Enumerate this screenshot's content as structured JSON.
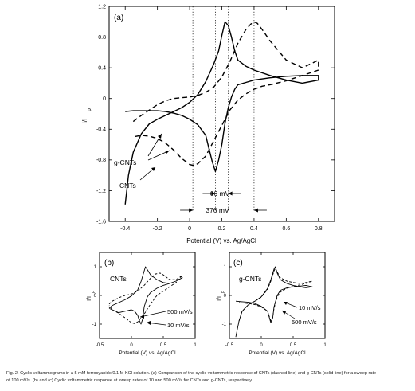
{
  "caption": {
    "line1": "Fig. 2. Cyclic voltammograms in a 5 mM ferrocyanide/0.1 M KCl solution. (a) Comparison of the cyclic voltammetric response of CNTs (dashed line) and g-CNTs (solid line) for a sweep rate",
    "line2": "of 100 mV/s. (b) and (c) Cyclic voltammetric response at sweep rates of 10 and 500 mV/s for CNTs and g-CNTs, respectively."
  },
  "chart_data": [
    {
      "panel_label": "(a)",
      "type": "line",
      "xlabel": "Potential (V) vs. Ag/AgCl",
      "ylabel": "I/I",
      "ylabel_sub": "p",
      "xlim": [
        -0.5,
        0.9
      ],
      "ylim": [
        -1.6,
        1.2
      ],
      "xticks": [
        -0.4,
        -0.2,
        0,
        0.2,
        0.4,
        0.6,
        0.8
      ],
      "xtick_labels": [
        "-0.4",
        "-0.2",
        "0",
        "0.2",
        "0.4",
        "0.6",
        "0.8"
      ],
      "yticks": [
        1.2,
        0.8,
        0.4,
        0,
        -0.4,
        -0.8,
        -1.2,
        -1.6
      ],
      "ytick_labels": [
        "1.2",
        "0.8",
        "0.4",
        "0",
        "-0.4",
        "-0.8",
        "-1.2",
        "-1.6"
      ],
      "series": [
        {
          "name": "g-CNTs",
          "style": "solid",
          "x": [
            -0.4,
            -0.38,
            -0.35,
            -0.3,
            -0.25,
            -0.2,
            -0.15,
            -0.1,
            -0.05,
            0.0,
            0.05,
            0.1,
            0.15,
            0.18,
            0.2,
            0.22,
            0.24,
            0.26,
            0.28,
            0.3,
            0.35,
            0.4,
            0.5,
            0.6,
            0.7,
            0.8,
            0.8,
            0.7,
            0.6,
            0.5,
            0.4,
            0.35,
            0.3,
            0.28,
            0.26,
            0.24,
            0.22,
            0.2,
            0.18,
            0.16,
            0.14,
            0.12,
            0.1,
            0.05,
            0.0,
            -0.05,
            -0.1,
            -0.15,
            -0.2,
            -0.25,
            -0.3,
            -0.35,
            -0.4
          ],
          "y": [
            -1.38,
            -1.0,
            -0.7,
            -0.46,
            -0.33,
            -0.27,
            -0.22,
            -0.17,
            -0.12,
            -0.05,
            0.05,
            0.22,
            0.45,
            0.62,
            0.82,
            1.0,
            0.95,
            0.8,
            0.62,
            0.5,
            0.42,
            0.37,
            0.3,
            0.24,
            0.2,
            0.24,
            0.3,
            0.3,
            0.29,
            0.27,
            0.24,
            0.21,
            0.18,
            0.12,
            0.02,
            -0.12,
            -0.32,
            -0.6,
            -0.8,
            -0.95,
            -0.82,
            -0.65,
            -0.48,
            -0.34,
            -0.27,
            -0.22,
            -0.19,
            -0.17,
            -0.16,
            -0.16,
            -0.16,
            -0.16,
            -0.17
          ]
        },
        {
          "name": "CNTs",
          "style": "dashed",
          "x": [
            -0.35,
            -0.3,
            -0.25,
            -0.2,
            -0.15,
            -0.1,
            -0.05,
            0.0,
            0.05,
            0.1,
            0.15,
            0.2,
            0.25,
            0.3,
            0.35,
            0.38,
            0.4,
            0.42,
            0.45,
            0.5,
            0.6,
            0.7,
            0.8,
            0.8,
            0.7,
            0.6,
            0.5,
            0.45,
            0.4,
            0.35,
            0.3,
            0.25,
            0.2,
            0.15,
            0.1,
            0.05,
            0.02,
            0.0,
            -0.05,
            -0.1,
            -0.15,
            -0.2,
            -0.25,
            -0.3,
            -0.35
          ],
          "y": [
            -0.3,
            -0.22,
            -0.15,
            -0.08,
            -0.03,
            0.0,
            0.01,
            0.02,
            0.04,
            0.08,
            0.15,
            0.28,
            0.48,
            0.72,
            0.9,
            0.97,
            1.0,
            0.98,
            0.9,
            0.75,
            0.5,
            0.4,
            0.5,
            0.37,
            0.3,
            0.23,
            0.18,
            0.16,
            0.12,
            0.06,
            -0.02,
            -0.15,
            -0.35,
            -0.55,
            -0.75,
            -0.85,
            -0.87,
            -0.86,
            -0.78,
            -0.67,
            -0.58,
            -0.52,
            -0.49,
            -0.48,
            -0.5
          ]
        }
      ],
      "annotations": [
        {
          "text": "g-CNTs",
          "type": "label"
        },
        {
          "text": "CNTs",
          "type": "label"
        },
        {
          "text": "66 mV",
          "type": "peak-separation",
          "x_from": 0.16,
          "x_to": 0.24
        },
        {
          "text": "376 mV",
          "type": "peak-separation",
          "x_from": 0.02,
          "x_to": 0.4
        }
      ],
      "reference_lines_x": [
        0.02,
        0.16,
        0.24,
        0.4
      ]
    },
    {
      "panel_label": "(b)",
      "type": "line",
      "title_label": "CNTs",
      "xlabel": "Potential (V) vs. Ag/AgCl",
      "ylabel": "I/I",
      "ylabel_sub": "p",
      "xlim": [
        -0.5,
        1.0
      ],
      "ylim": [
        -1.5,
        1.5
      ],
      "xticks": [
        -0.5,
        0,
        0.5,
        1
      ],
      "xtick_labels": [
        "-0.5",
        "0",
        "0.5",
        "1"
      ],
      "yticks": [
        -1,
        0,
        1
      ],
      "ytick_labels": [
        "-1",
        "0",
        "1"
      ],
      "series": [
        {
          "name": "10 mV/s",
          "style": "solid",
          "x": [
            -0.35,
            -0.3,
            -0.2,
            -0.1,
            0.0,
            0.1,
            0.15,
            0.2,
            0.22,
            0.25,
            0.3,
            0.4,
            0.5,
            0.6,
            0.7,
            0.8,
            0.7,
            0.6,
            0.5,
            0.4,
            0.3,
            0.25,
            0.2,
            0.18,
            0.15,
            0.12,
            0.1,
            0.05,
            0.0,
            -0.1,
            -0.2,
            -0.3,
            -0.35
          ],
          "y": [
            -0.45,
            -0.35,
            -0.25,
            -0.15,
            -0.02,
            0.2,
            0.48,
            0.85,
            1.0,
            0.9,
            0.72,
            0.55,
            0.45,
            0.42,
            0.5,
            0.62,
            0.5,
            0.42,
            0.35,
            0.25,
            0.1,
            -0.05,
            -0.4,
            -0.8,
            -1.0,
            -0.85,
            -0.7,
            -0.55,
            -0.5,
            -0.55,
            -0.6,
            -0.5,
            -0.45
          ]
        },
        {
          "name": "500 mV/s",
          "style": "dashed",
          "x": [
            -0.35,
            -0.3,
            -0.2,
            -0.1,
            0.0,
            0.1,
            0.2,
            0.3,
            0.38,
            0.45,
            0.5,
            0.6,
            0.7,
            0.8,
            0.7,
            0.6,
            0.5,
            0.4,
            0.3,
            0.2,
            0.1,
            0.05,
            0.0,
            -0.1,
            -0.2,
            -0.3,
            -0.35
          ],
          "y": [
            -0.3,
            -0.2,
            -0.08,
            0.0,
            0.05,
            0.15,
            0.35,
            0.6,
            0.75,
            0.78,
            0.72,
            0.55,
            0.55,
            0.7,
            0.45,
            0.3,
            0.15,
            0.0,
            -0.3,
            -0.65,
            -0.92,
            -0.98,
            -0.95,
            -0.78,
            -0.62,
            -0.5,
            -0.35
          ]
        }
      ],
      "annotations": [
        {
          "text": "500 mV/s",
          "type": "label"
        },
        {
          "text": "10 mV/s",
          "type": "label"
        }
      ]
    },
    {
      "panel_label": "(c)",
      "type": "line",
      "title_label": "g-CNTs",
      "xlabel": "Potential (V) vs. Ag/AgCl",
      "ylabel": "I/I",
      "ylabel_sub": "p",
      "xlim": [
        -0.5,
        1.0
      ],
      "ylim": [
        -1.5,
        1.5
      ],
      "xticks": [
        -0.5,
        0,
        0.5,
        1
      ],
      "xtick_labels": [
        "-0.5",
        "0",
        "0.5",
        "1"
      ],
      "yticks": [
        -1,
        0,
        1
      ],
      "ytick_labels": [
        "-1",
        "0",
        "1"
      ],
      "series": [
        {
          "name": "10 mV/s",
          "style": "solid",
          "x": [
            -0.4,
            -0.35,
            -0.3,
            -0.2,
            -0.1,
            0.0,
            0.1,
            0.15,
            0.2,
            0.22,
            0.25,
            0.3,
            0.4,
            0.5,
            0.6,
            0.7,
            0.8,
            0.7,
            0.6,
            0.5,
            0.4,
            0.3,
            0.25,
            0.2,
            0.18,
            0.15,
            0.12,
            0.1,
            0.0,
            -0.1,
            -0.2,
            -0.3,
            -0.4
          ],
          "y": [
            -1.45,
            -0.9,
            -0.55,
            -0.32,
            -0.2,
            -0.05,
            0.25,
            0.55,
            0.92,
            1.0,
            0.78,
            0.55,
            0.42,
            0.35,
            0.3,
            0.27,
            0.3,
            0.35,
            0.32,
            0.3,
            0.26,
            0.18,
            0.0,
            -0.4,
            -0.78,
            -0.95,
            -0.72,
            -0.55,
            -0.38,
            -0.28,
            -0.24,
            -0.22,
            -0.2
          ]
        },
        {
          "name": "500 mV/s",
          "style": "dashed",
          "x": [
            -0.35,
            -0.3,
            -0.2,
            -0.1,
            0.0,
            0.1,
            0.15,
            0.2,
            0.22,
            0.25,
            0.3,
            0.4,
            0.5,
            0.6,
            0.7,
            0.8,
            0.7,
            0.6,
            0.5,
            0.4,
            0.3,
            0.25,
            0.2,
            0.18,
            0.15,
            0.12,
            0.1,
            0.0,
            -0.1,
            -0.2,
            -0.3,
            -0.35
          ],
          "y": [
            -0.9,
            -0.55,
            -0.32,
            -0.2,
            -0.06,
            0.22,
            0.5,
            0.85,
            0.95,
            0.82,
            0.62,
            0.5,
            0.45,
            0.42,
            0.45,
            0.5,
            0.42,
            0.36,
            0.32,
            0.25,
            0.12,
            -0.05,
            -0.45,
            -0.75,
            -0.88,
            -0.7,
            -0.55,
            -0.4,
            -0.32,
            -0.28,
            -0.26,
            -0.25
          ]
        }
      ],
      "annotations": [
        {
          "text": "10 mV/s",
          "type": "label"
        },
        {
          "text": "500 mV/s",
          "type": "label"
        }
      ]
    }
  ]
}
